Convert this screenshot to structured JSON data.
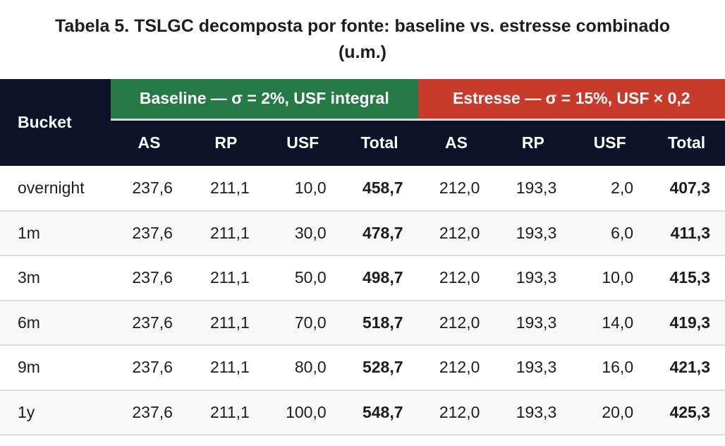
{
  "title": {
    "line1": "Tabela 5. TSLGC decomposta por fonte: baseline vs. estresse combinado",
    "line2": "(u.m.)"
  },
  "colors": {
    "navy": "#0e1228",
    "green": "#267a46",
    "red": "#c83b2b",
    "band_divider": "#d9d9d9",
    "row_divider": "#dcdcdc",
    "zebra": "#f8f8f9",
    "ink": "#1d1d1d"
  },
  "table": {
    "bucket_header": "Bucket",
    "groups": [
      {
        "label": "Baseline — σ = 2%, USF integral"
      },
      {
        "label": "Estresse — σ = 15%, USF × 0,2"
      }
    ],
    "subheaders": [
      "AS",
      "RP",
      "USF",
      "Total",
      "AS",
      "RP",
      "USF",
      "Total"
    ],
    "rows": [
      {
        "bucket": "overnight",
        "values": [
          "237,6",
          "211,1",
          "10,0",
          "458,7",
          "212,0",
          "193,3",
          "2,0",
          "407,3"
        ]
      },
      {
        "bucket": "1m",
        "values": [
          "237,6",
          "211,1",
          "30,0",
          "478,7",
          "212,0",
          "193,3",
          "6,0",
          "411,3"
        ]
      },
      {
        "bucket": "3m",
        "values": [
          "237,6",
          "211,1",
          "50,0",
          "498,7",
          "212,0",
          "193,3",
          "10,0",
          "415,3"
        ]
      },
      {
        "bucket": "6m",
        "values": [
          "237,6",
          "211,1",
          "70,0",
          "518,7",
          "212,0",
          "193,3",
          "14,0",
          "419,3"
        ]
      },
      {
        "bucket": "9m",
        "values": [
          "237,6",
          "211,1",
          "80,0",
          "528,7",
          "212,0",
          "193,3",
          "16,0",
          "421,3"
        ]
      },
      {
        "bucket": "1y",
        "values": [
          "237,6",
          "211,1",
          "100,0",
          "548,7",
          "212,0",
          "193,3",
          "20,0",
          "425,3"
        ]
      }
    ]
  },
  "chart_data": {
    "type": "table",
    "title": "Tabela 5. TSLGC decomposta por fonte: baseline vs. estresse combinado (u.m.)",
    "column_groups": [
      {
        "label": "Baseline — σ = 2%, USF integral",
        "columns": [
          "AS",
          "RP",
          "USF",
          "Total"
        ]
      },
      {
        "label": "Estresse — σ = 15%, USF × 0,2",
        "columns": [
          "AS",
          "RP",
          "USF",
          "Total"
        ]
      }
    ],
    "row_label_column": "Bucket",
    "rows": [
      {
        "bucket": "overnight",
        "baseline": {
          "AS": 237.6,
          "RP": 211.1,
          "USF": 10.0,
          "Total": 458.7
        },
        "estresse": {
          "AS": 212.0,
          "RP": 193.3,
          "USF": 2.0,
          "Total": 407.3
        }
      },
      {
        "bucket": "1m",
        "baseline": {
          "AS": 237.6,
          "RP": 211.1,
          "USF": 30.0,
          "Total": 478.7
        },
        "estresse": {
          "AS": 212.0,
          "RP": 193.3,
          "USF": 6.0,
          "Total": 411.3
        }
      },
      {
        "bucket": "3m",
        "baseline": {
          "AS": 237.6,
          "RP": 211.1,
          "USF": 50.0,
          "Total": 498.7
        },
        "estresse": {
          "AS": 212.0,
          "RP": 193.3,
          "USF": 10.0,
          "Total": 415.3
        }
      },
      {
        "bucket": "6m",
        "baseline": {
          "AS": 237.6,
          "RP": 211.1,
          "USF": 70.0,
          "Total": 518.7
        },
        "estresse": {
          "AS": 212.0,
          "RP": 193.3,
          "USF": 14.0,
          "Total": 419.3
        }
      },
      {
        "bucket": "9m",
        "baseline": {
          "AS": 237.6,
          "RP": 211.1,
          "USF": 80.0,
          "Total": 528.7
        },
        "estresse": {
          "AS": 212.0,
          "RP": 193.3,
          "USF": 16.0,
          "Total": 421.3
        }
      },
      {
        "bucket": "1y",
        "baseline": {
          "AS": 237.6,
          "RP": 211.1,
          "USF": 100.0,
          "Total": 548.7
        },
        "estresse": {
          "AS": 212.0,
          "RP": 193.3,
          "USF": 20.0,
          "Total": 425.3
        }
      }
    ]
  }
}
